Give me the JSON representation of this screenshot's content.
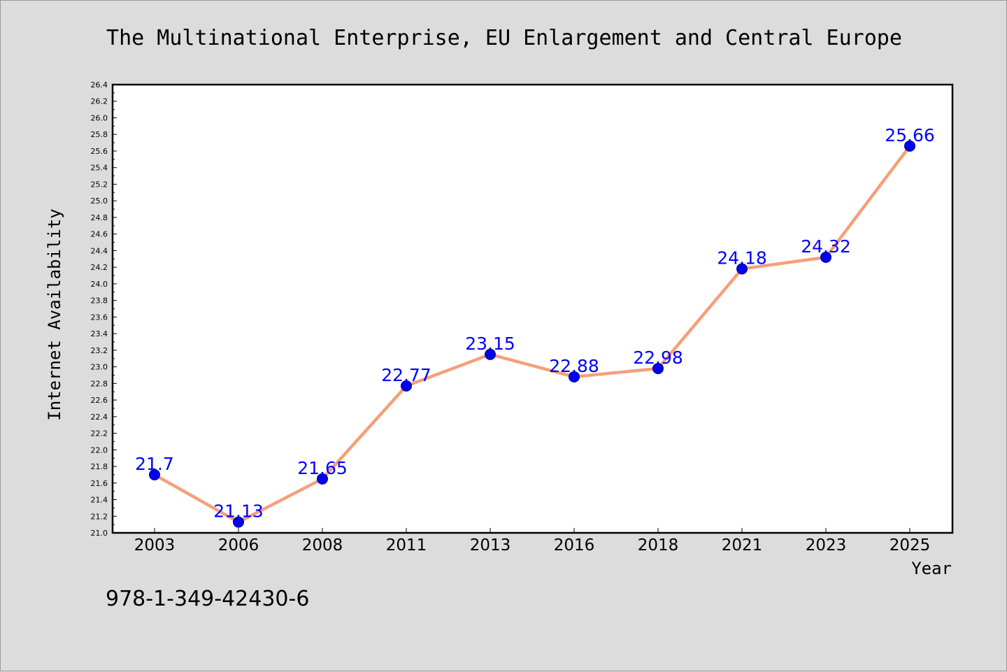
{
  "chart_data": {
    "type": "line",
    "title": "The Multinational Enterprise, EU Enlargement and Central Europe",
    "xlabel": "Year",
    "ylabel": "Internet Availability",
    "categories": [
      "2003",
      "2006",
      "2008",
      "2011",
      "2013",
      "2016",
      "2018",
      "2021",
      "2023",
      "2025"
    ],
    "series": [
      {
        "values": [
          21.7,
          21.13,
          21.65,
          22.77,
          23.15,
          22.88,
          22.98,
          24.18,
          24.32,
          25.66
        ]
      }
    ],
    "data_labels": [
      "21.7",
      "21.13",
      "21.65",
      "22.77",
      "23.15",
      "22.88",
      "22.98",
      "24.18",
      "24.32",
      "25.66"
    ],
    "ylim": [
      21.0,
      26.4
    ],
    "y_tick_step": 0.2,
    "grid": false,
    "legend": "none",
    "colors": {
      "line": "#f4a07a",
      "marker": "#0000ee",
      "marker_edge": "#00008b",
      "label": "#0000ff",
      "background": "#dcdcdc",
      "plot_background": "#ffffff"
    }
  },
  "footer_text": "978-1-349-42430-6"
}
